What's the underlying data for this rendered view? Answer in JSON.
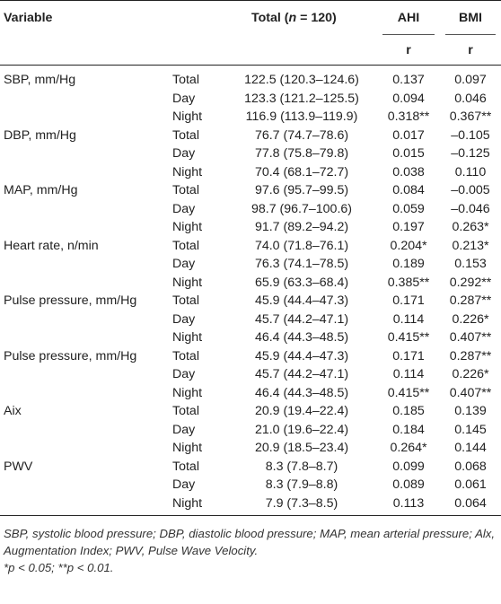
{
  "header": {
    "variable": "Variable",
    "total_prefix": "Total (",
    "total_n": "n",
    "total_suffix": " = 120)",
    "ahi": "AHI",
    "bmi": "BMI",
    "r_ahi": "r",
    "r_bmi": "r"
  },
  "groups": [
    {
      "name": "SBP, mm/Hg",
      "rows": [
        {
          "sub": "Total",
          "total": "122.5 (120.3–124.6)",
          "ahi": "0.137",
          "bmi": "0.097"
        },
        {
          "sub": "Day",
          "total": "123.3 (121.2–125.5)",
          "ahi": "0.094",
          "bmi": "0.046"
        },
        {
          "sub": "Night",
          "total": "116.9 (113.9–119.9)",
          "ahi": "0.318**",
          "bmi": "0.367**"
        }
      ]
    },
    {
      "name": "DBP, mm/Hg",
      "rows": [
        {
          "sub": "Total",
          "total": "76.7 (74.7–78.6)",
          "ahi": "0.017",
          "bmi": "–0.105"
        },
        {
          "sub": "Day",
          "total": "77.8 (75.8–79.8)",
          "ahi": "0.015",
          "bmi": "–0.125"
        },
        {
          "sub": "Night",
          "total": "70.4 (68.1–72.7)",
          "ahi": "0.038",
          "bmi": "0.110"
        }
      ]
    },
    {
      "name": "MAP, mm/Hg",
      "rows": [
        {
          "sub": "Total",
          "total": "97.6 (95.7–99.5)",
          "ahi": "0.084",
          "bmi": "–0.005"
        },
        {
          "sub": "Day",
          "total": "98.7 (96.7–100.6)",
          "ahi": "0.059",
          "bmi": "–0.046"
        },
        {
          "sub": "Night",
          "total": "91.7 (89.2–94.2)",
          "ahi": "0.197",
          "bmi": "0.263*"
        }
      ]
    },
    {
      "name": "Heart rate, n/min",
      "rows": [
        {
          "sub": "Total",
          "total": "74.0 (71.8–76.1)",
          "ahi": "0.204*",
          "bmi": "0.213*"
        },
        {
          "sub": "Day",
          "total": "76.3 (74.1–78.5)",
          "ahi": "0.189",
          "bmi": "0.153"
        },
        {
          "sub": "Night",
          "total": "65.9 (63.3–68.4)",
          "ahi": "0.385**",
          "bmi": "0.292**"
        }
      ]
    },
    {
      "name": "Pulse pressure, mm/Hg",
      "rows": [
        {
          "sub": "Total",
          "total": "45.9 (44.4–47.3)",
          "ahi": "0.171",
          "bmi": "0.287**"
        },
        {
          "sub": "Day",
          "total": "45.7 (44.2–47.1)",
          "ahi": "0.114",
          "bmi": "0.226*"
        },
        {
          "sub": "Night",
          "total": "46.4 (44.3–48.5)",
          "ahi": "0.415**",
          "bmi": "0.407**"
        }
      ]
    },
    {
      "name": "Pulse pressure, mm/Hg",
      "rows": [
        {
          "sub": "Total",
          "total": "45.9 (44.4–47.3)",
          "ahi": "0.171",
          "bmi": "0.287**"
        },
        {
          "sub": "Day",
          "total": "45.7 (44.2–47.1)",
          "ahi": "0.114",
          "bmi": "0.226*"
        },
        {
          "sub": "Night",
          "total": "46.4 (44.3–48.5)",
          "ahi": "0.415**",
          "bmi": "0.407**"
        }
      ]
    },
    {
      "name": "Aix",
      "rows": [
        {
          "sub": "Total",
          "total": "20.9 (19.4–22.4)",
          "ahi": "0.185",
          "bmi": "0.139"
        },
        {
          "sub": "Day",
          "total": "21.0 (19.6–22.4)",
          "ahi": "0.184",
          "bmi": "0.145"
        },
        {
          "sub": "Night",
          "total": "20.9 (18.5–23.4)",
          "ahi": "0.264*",
          "bmi": "0.144"
        }
      ]
    },
    {
      "name": "PWV",
      "rows": [
        {
          "sub": "Total",
          "total": "8.3 (7.8–8.7)",
          "ahi": "0.099",
          "bmi": "0.068"
        },
        {
          "sub": "Day",
          "total": "8.3 (7.9–8.8)",
          "ahi": "0.089",
          "bmi": "0.061"
        },
        {
          "sub": "Night",
          "total": "7.9 (7.3–8.5)",
          "ahi": "0.113",
          "bmi": "0.064"
        }
      ]
    }
  ],
  "footnote": {
    "abbreviations": "SBP, systolic blood pressure; DBP, diastolic blood pressure; MAP, mean arterial pressure; Alx, Augmentation Index; PWV, Pulse Wave Velocity.",
    "significance": "*p < 0.05; **p < 0.01."
  }
}
